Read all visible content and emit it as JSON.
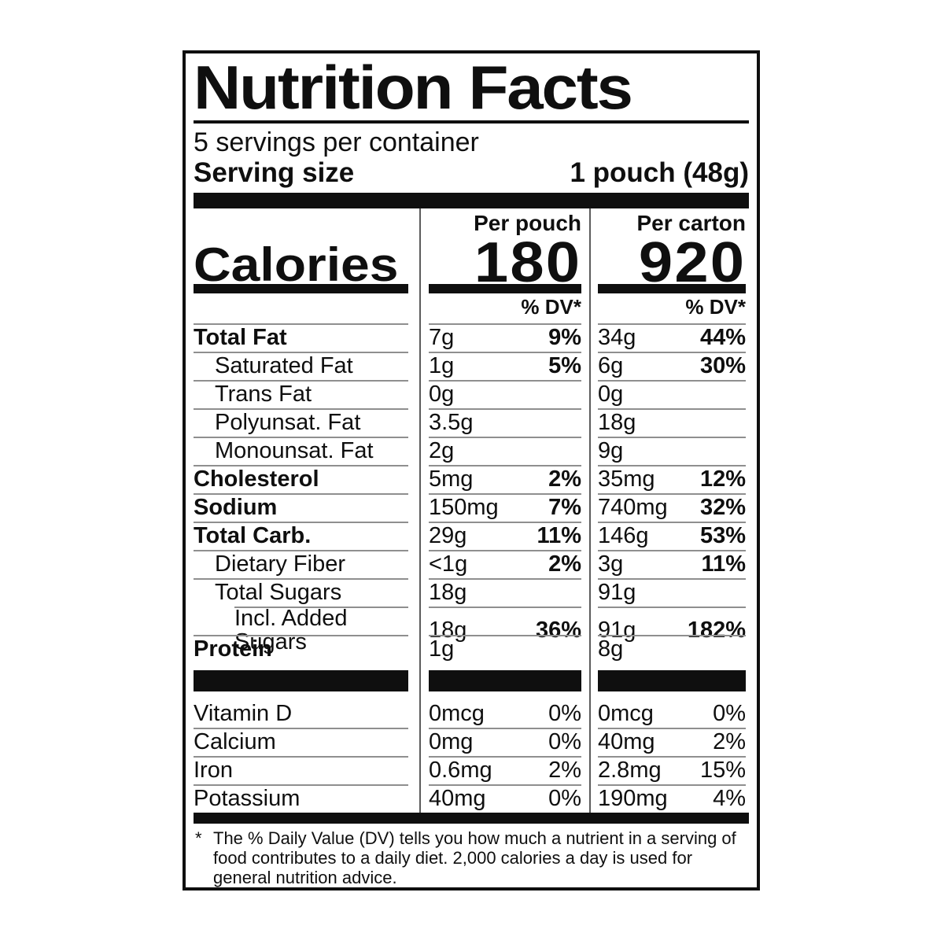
{
  "label": {
    "title": "Nutrition Facts",
    "servings_per_container": "5 servings per container",
    "serving_size_label": "Serving size",
    "serving_size_value": "1 pouch (48g)",
    "calories_label": "Calories",
    "pouch_column": {
      "header": "Per pouch",
      "calories": "180",
      "dv_header": "% DV*"
    },
    "carton_column": {
      "header": "Per carton",
      "calories": "920",
      "dv_header": "% DV*"
    },
    "rows": [
      {
        "name": "Total Fat",
        "bold": true,
        "indent": 0,
        "pouch": {
          "amount": "7g",
          "dv": "9%"
        },
        "carton": {
          "amount": "34g",
          "dv": "44%"
        }
      },
      {
        "name": "Saturated Fat",
        "bold": false,
        "indent": 1,
        "pouch": {
          "amount": "1g",
          "dv": "5%"
        },
        "carton": {
          "amount": "6g",
          "dv": "30%"
        }
      },
      {
        "name": "Trans Fat",
        "bold": false,
        "indent": 1,
        "pouch": {
          "amount": "0g",
          "dv": ""
        },
        "carton": {
          "amount": "0g",
          "dv": ""
        }
      },
      {
        "name": "Polyunsat. Fat",
        "bold": false,
        "indent": 1,
        "pouch": {
          "amount": "3.5g",
          "dv": ""
        },
        "carton": {
          "amount": "18g",
          "dv": ""
        }
      },
      {
        "name": "Monounsat. Fat",
        "bold": false,
        "indent": 1,
        "pouch": {
          "amount": "2g",
          "dv": ""
        },
        "carton": {
          "amount": "9g",
          "dv": ""
        }
      },
      {
        "name": "Cholesterol",
        "bold": true,
        "indent": 0,
        "pouch": {
          "amount": "5mg",
          "dv": "2%"
        },
        "carton": {
          "amount": "35mg",
          "dv": "12%"
        }
      },
      {
        "name": "Sodium",
        "bold": true,
        "indent": 0,
        "pouch": {
          "amount": "150mg",
          "dv": "7%"
        },
        "carton": {
          "amount": "740mg",
          "dv": "32%"
        }
      },
      {
        "name": "Total Carb.",
        "bold": true,
        "indent": 0,
        "pouch": {
          "amount": "29g",
          "dv": "11%"
        },
        "carton": {
          "amount": "146g",
          "dv": "53%"
        }
      },
      {
        "name": "Dietary Fiber",
        "bold": false,
        "indent": 1,
        "pouch": {
          "amount": "<1g",
          "dv": "2%"
        },
        "carton": {
          "amount": "3g",
          "dv": "11%"
        }
      },
      {
        "name": "Total Sugars",
        "bold": false,
        "indent": 1,
        "pouch": {
          "amount": "18g",
          "dv": ""
        },
        "carton": {
          "amount": "91g",
          "dv": ""
        }
      },
      {
        "name": "Incl. Added Sugars",
        "bold": false,
        "indent": 2,
        "rule_indent": true,
        "pouch": {
          "amount": "18g",
          "dv": "36%"
        },
        "carton": {
          "amount": "91g",
          "dv": "182%"
        }
      },
      {
        "name": "Protein",
        "bold": true,
        "indent": 0,
        "pouch": {
          "amount": "1g",
          "dv": ""
        },
        "carton": {
          "amount": "8g",
          "dv": ""
        }
      }
    ],
    "vitamin_rows": [
      {
        "name": "Vitamin D",
        "pouch": {
          "amount": "0mcg",
          "dv": "0%"
        },
        "carton": {
          "amount": "0mcg",
          "dv": "0%"
        }
      },
      {
        "name": "Calcium",
        "pouch": {
          "amount": "0mg",
          "dv": "0%"
        },
        "carton": {
          "amount": "40mg",
          "dv": "2%"
        }
      },
      {
        "name": "Iron",
        "pouch": {
          "amount": "0.6mg",
          "dv": "2%"
        },
        "carton": {
          "amount": "2.8mg",
          "dv": "15%"
        }
      },
      {
        "name": "Potassium",
        "pouch": {
          "amount": "40mg",
          "dv": "0%"
        },
        "carton": {
          "amount": "190mg",
          "dv": "4%"
        }
      }
    ],
    "footnote_marker": "*",
    "footnote": "The % Daily Value (DV) tells you how much a nutrient in a serving of food contributes to a daily diet. 2,000 calories a day is used for general nutrition advice."
  },
  "colors": {
    "text": "#0f0f0f",
    "background": "#ffffff",
    "row_rule": "#8f8f8f",
    "column_divider": "#5c5c5c"
  }
}
